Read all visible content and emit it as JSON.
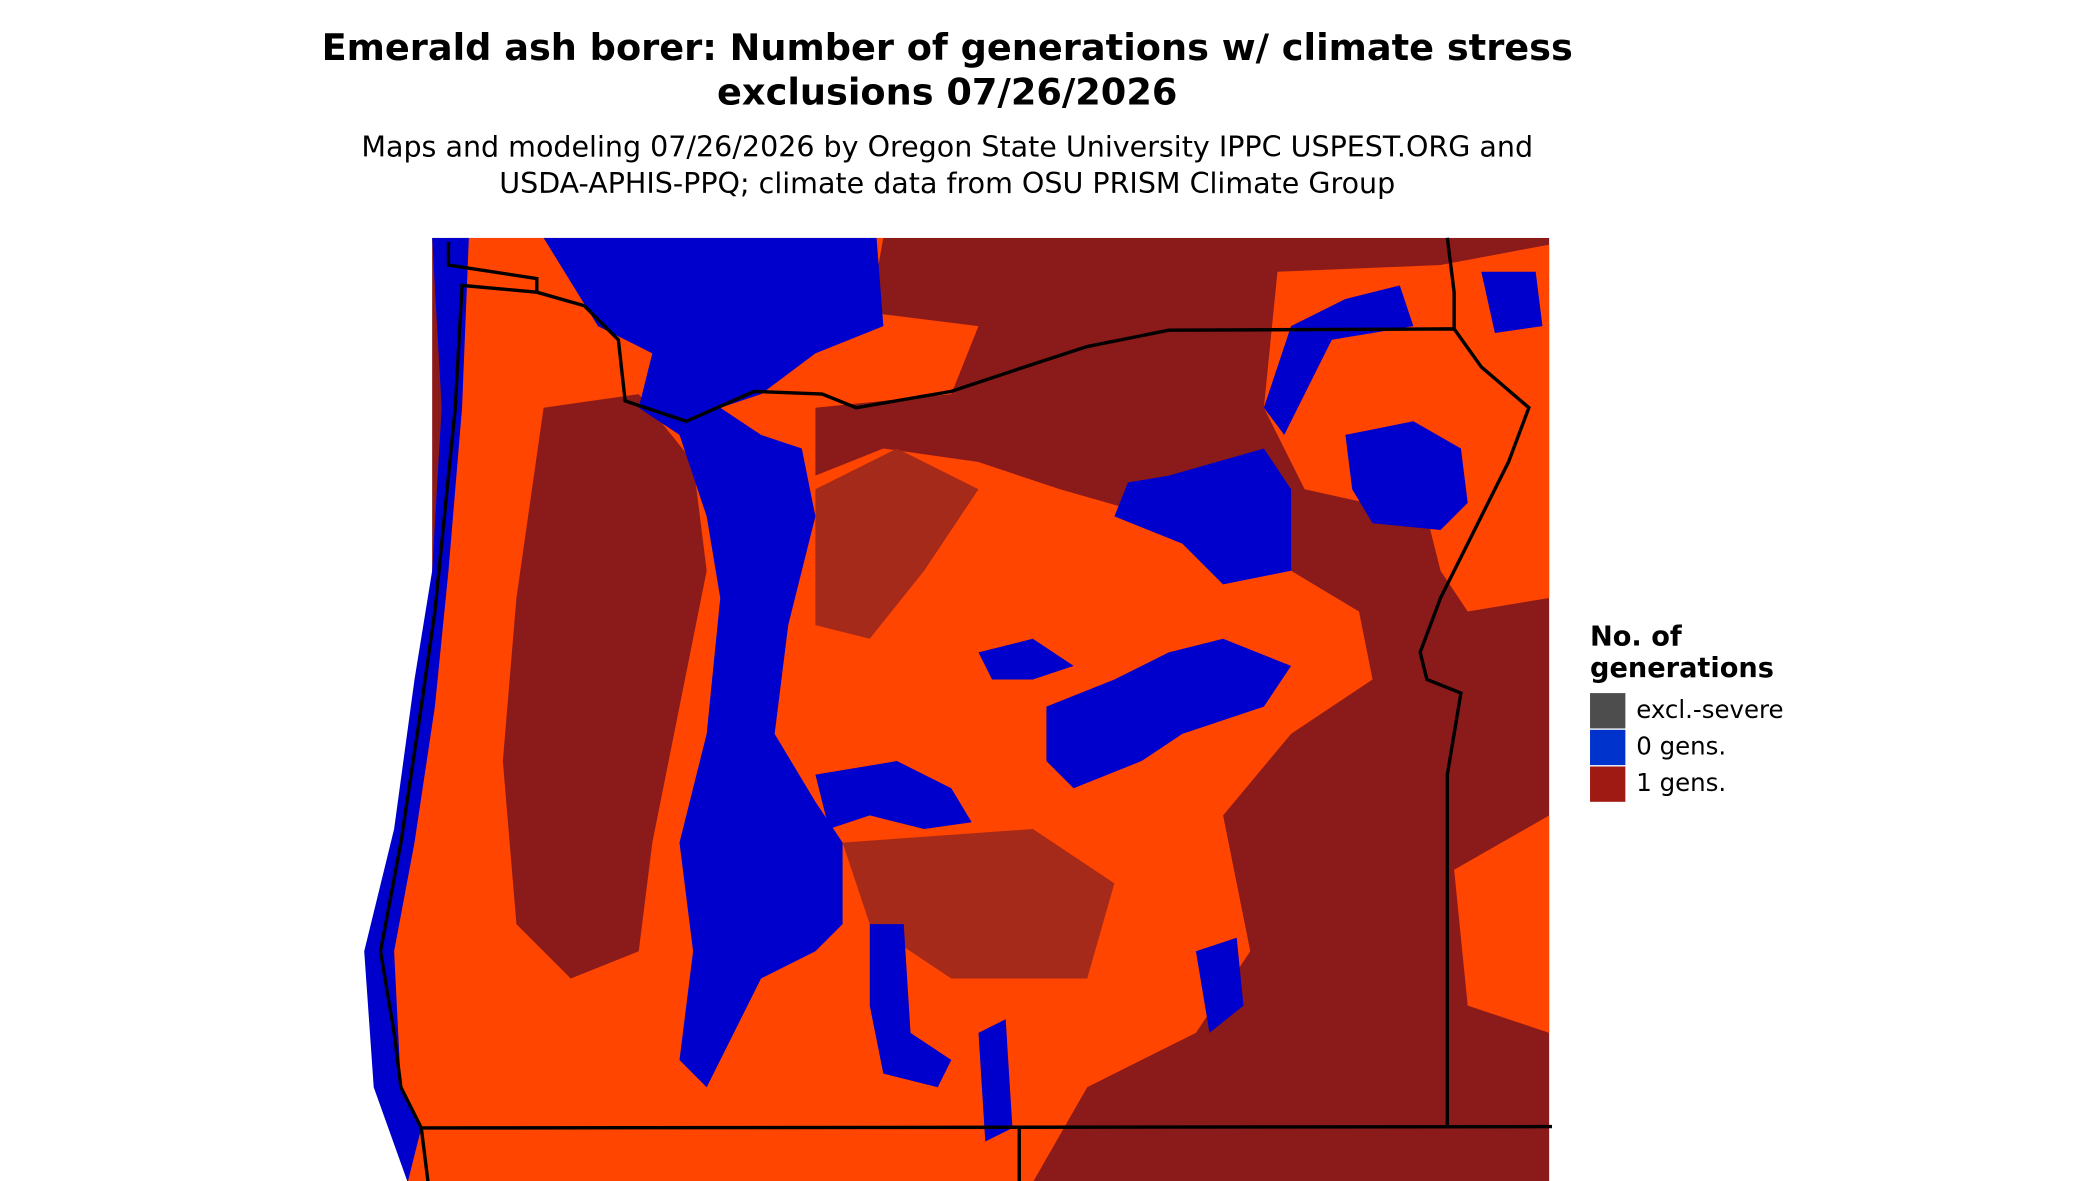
{
  "title": [
    "Emerald ash borer: Number of generations w/ climate stress",
    "exclusions 07/26/2026"
  ],
  "subtitle": [
    "Maps and modeling 07/26/2026 by Oregon State University IPPC USPEST.ORG and",
    "USDA-APHIS-PPQ; climate data from OSU PRISM Climate Group"
  ],
  "legend": {
    "title": [
      "No. of",
      "generations"
    ],
    "items": [
      {
        "label": "excl.-severe",
        "color": "#4d4d4d"
      },
      {
        "label": "0 gens.",
        "color": "#0033cc"
      },
      {
        "label": "1 gens.",
        "color": "#a01a14"
      }
    ]
  }
}
